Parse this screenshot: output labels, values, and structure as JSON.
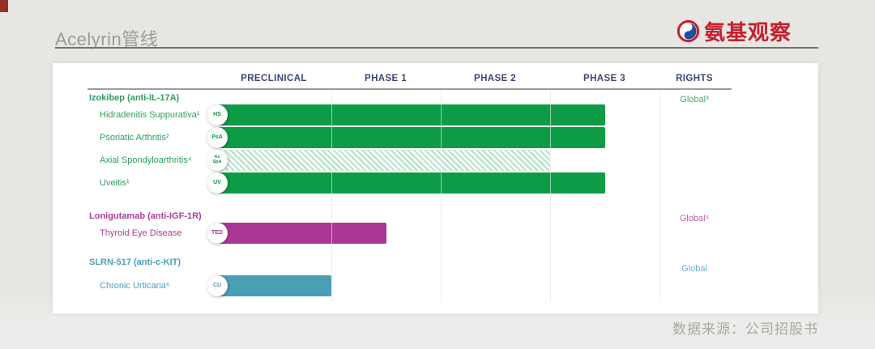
{
  "header": {
    "title": "Acelyrin管线",
    "logo_text": "氨基观察",
    "logo_color": "#c5202e"
  },
  "footer": {
    "source": "数据来源：公司招股书"
  },
  "chart_data": {
    "type": "bar",
    "subtype": "drug-pipeline-gantt",
    "title": "Acelyrin管线",
    "columns": [
      "PRECLINICAL",
      "PHASE 1",
      "PHASE 2",
      "PHASE 3",
      "RIGHTS"
    ],
    "progress_scale": "phases spanned: 1=end of Preclinical, 2=end of Phase 1, 3=end of Phase 2, 4=end of Phase 3",
    "groups": [
      {
        "name": "Izokibep (anti-IL-17A)",
        "rights": "Global³",
        "bar_color": "#0d9b46",
        "label_color": "#2e9e5e",
        "rights_color": "#4aae74",
        "programs": [
          {
            "indication": "Hidradenitis Suppurativa¹",
            "badge": "HS",
            "progress": 3.5,
            "fill": "solid"
          },
          {
            "indication": "Psoriatic Arthritis²",
            "badge": "PsA",
            "progress": 3.5,
            "fill": "solid"
          },
          {
            "indication": "Axial Spondyloarthritis⁴",
            "badge": "Ax SpA",
            "progress": 3.0,
            "fill": "hatched"
          },
          {
            "indication": "Uveitis¹",
            "badge": "UV",
            "progress": 3.5,
            "fill": "solid"
          }
        ]
      },
      {
        "name": "Lonigutamab (anti-IGF-1R)",
        "rights": "Global⁵",
        "bar_color": "#a93795",
        "label_color": "#ab3d98",
        "rights_color": "#bd64ac",
        "programs": [
          {
            "indication": "Thyroid Eye Disease",
            "badge": "TED",
            "progress": 1.5,
            "fill": "solid"
          }
        ]
      },
      {
        "name": "SLRN-517 (anti-c-KIT)",
        "rights": "Global",
        "bar_color": "#4a9fb5",
        "label_color": "#4aa0ba",
        "rights_color": "#6fafcd",
        "programs": [
          {
            "indication": "Chronic Urticaria⁶",
            "badge": "CU",
            "progress": 1.0,
            "fill": "solid"
          }
        ]
      }
    ],
    "colors": {
      "column_header_text": "#3c4577",
      "header_rule": "#9e9e9e",
      "gridline": "#d8d8d8"
    }
  }
}
